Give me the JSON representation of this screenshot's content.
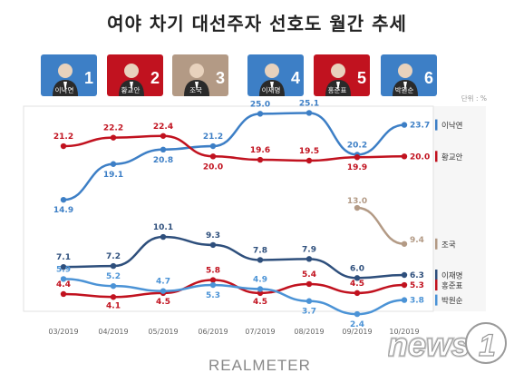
{
  "title": "여야 차기 대선주자 선호도 월간 추세",
  "unit_note": "단위 : %",
  "brand": "REALMETER",
  "watermark": "news1",
  "candidates": [
    {
      "name": "이낙연",
      "number": "1",
      "color": "#3d7fc6"
    },
    {
      "name": "황교안",
      "number": "2",
      "color": "#c1121f"
    },
    {
      "name": "조국",
      "number": "3",
      "color": "#b39a85"
    },
    {
      "name": "이재명",
      "number": "4",
      "color": "#3d7fc6"
    },
    {
      "name": "홍준표",
      "number": "5",
      "color": "#c1121f"
    },
    {
      "name": "박원순",
      "number": "6",
      "color": "#3d7fc6"
    }
  ],
  "chart_data": [
    {
      "type": "line",
      "panel": "upper",
      "categories": [
        "03/2019",
        "04/2019",
        "05/2019",
        "06/2019",
        "07/2019",
        "08/2019",
        "09/2019",
        "10/2019"
      ],
      "series": [
        {
          "name": "이낙연",
          "color": "#3d7fc6",
          "values": [
            14.9,
            19.1,
            20.8,
            21.2,
            25.0,
            25.1,
            20.2,
            23.7
          ],
          "labels": [
            "14.9",
            "19.1",
            "20.8",
            "21.2",
            "25.0",
            "25.1",
            "20.2",
            "23.7"
          ]
        },
        {
          "name": "황교안",
          "color": "#c1121f",
          "values": [
            21.2,
            22.2,
            22.4,
            20.0,
            19.6,
            19.5,
            19.9,
            20.0
          ],
          "labels": [
            "21.2",
            "22.2",
            "22.4",
            "20.0",
            "19.6",
            "19.5",
            "19.9",
            "20.0"
          ]
        }
      ],
      "ylim": [
        13,
        26
      ]
    },
    {
      "type": "line",
      "panel": "lower",
      "categories": [
        "03/2019",
        "04/2019",
        "05/2019",
        "06/2019",
        "07/2019",
        "08/2019",
        "09/2019",
        "10/2019"
      ],
      "series": [
        {
          "name": "조국",
          "color": "#b39a85",
          "values": [
            null,
            null,
            null,
            null,
            null,
            null,
            13.0,
            9.4
          ],
          "labels": [
            "",
            "",
            "",
            "",
            "",
            "",
            "13.0",
            "9.4"
          ]
        },
        {
          "name": "이재명",
          "color": "#2e4f7c",
          "values": [
            7.1,
            7.2,
            10.1,
            9.3,
            7.8,
            7.9,
            6.0,
            6.3
          ],
          "labels": [
            "7.1",
            "7.2",
            "10.1",
            "9.3",
            "7.8",
            "7.9",
            "6.0",
            "6.3"
          ]
        },
        {
          "name": "홍준표",
          "color": "#c1121f",
          "values": [
            4.4,
            4.1,
            4.5,
            5.8,
            4.5,
            5.4,
            4.5,
            5.3
          ],
          "labels": [
            "4.4",
            "4.1",
            "4.5",
            "5.8",
            "4.5",
            "5.4",
            "4.5",
            "5.3"
          ]
        },
        {
          "name": "박원순",
          "color": "#4b93d6",
          "values": [
            5.9,
            5.2,
            4.7,
            5.3,
            4.9,
            3.7,
            2.4,
            3.8
          ],
          "labels": [
            "5.9",
            "5.2",
            "4.7",
            "5.3",
            "4.9",
            "3.7",
            "2.4",
            "3.8"
          ]
        }
      ],
      "ylim": [
        1.5,
        14
      ]
    }
  ]
}
